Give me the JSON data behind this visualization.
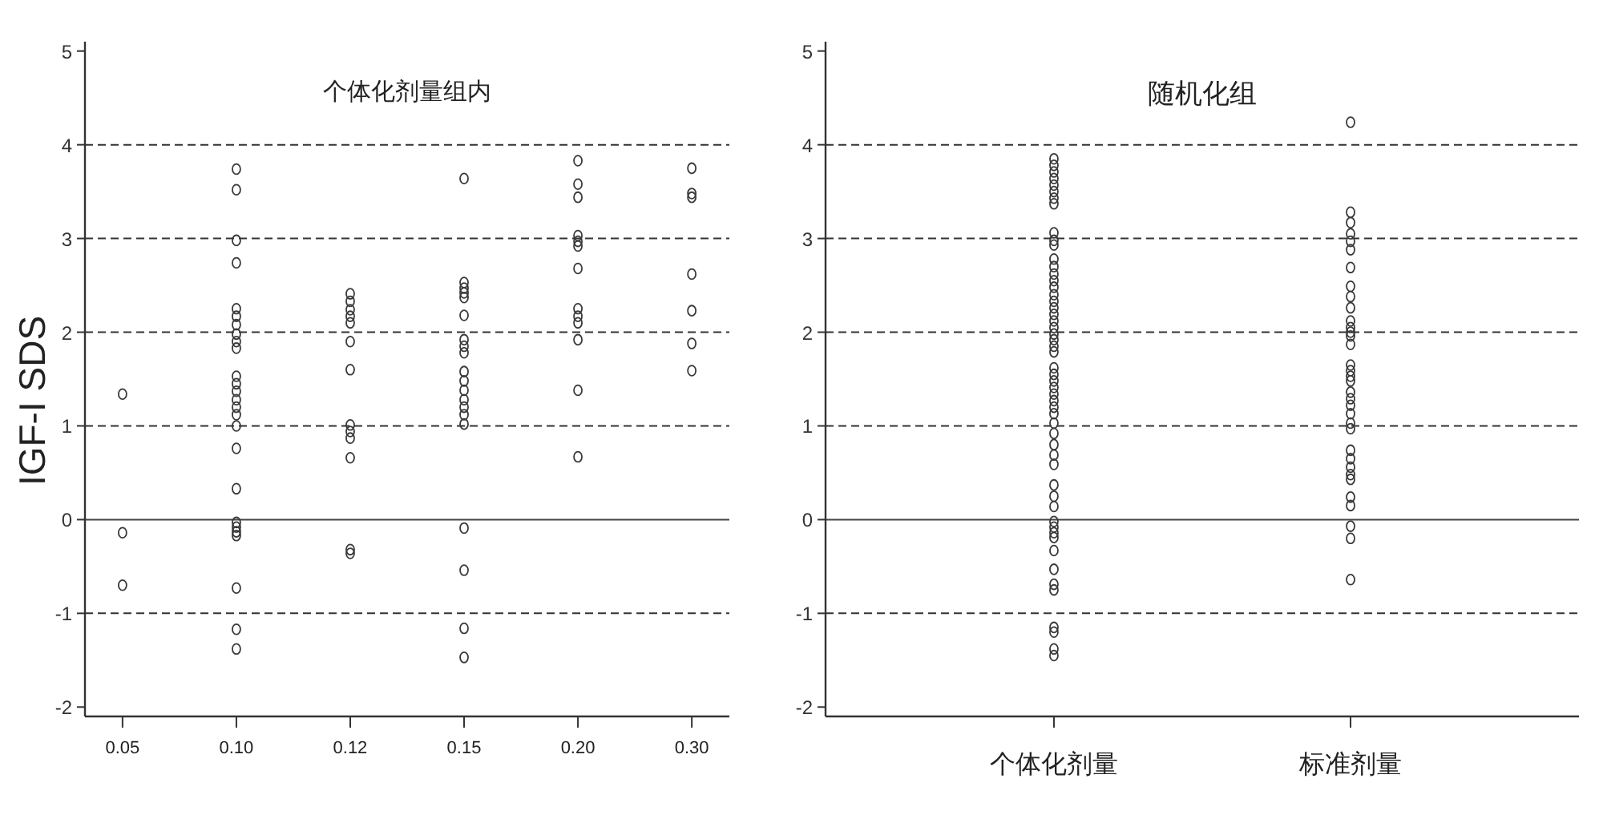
{
  "chart_data": [
    {
      "type": "scatter",
      "title": "个体化剂量组内",
      "ylabel": "IGF-I SDS",
      "categories": [
        "0.05",
        "0.10",
        "0.12",
        "0.15",
        "0.20",
        "0.30"
      ],
      "marker": "circle",
      "ylim": [
        -2.1,
        5.1
      ],
      "yticks": [
        -2,
        -1,
        0,
        1,
        2,
        3,
        4,
        5
      ],
      "ref_lines": [
        {
          "axis": "y",
          "value": 4,
          "line_style": "dashed",
          "color": "#333333"
        },
        {
          "axis": "y",
          "value": 3,
          "line_style": "dashed",
          "color": "#333333"
        },
        {
          "axis": "y",
          "value": 2,
          "line_style": "dashed",
          "color": "#333333"
        },
        {
          "axis": "y",
          "value": 1,
          "line_style": "dashed",
          "color": "#333333"
        },
        {
          "axis": "y",
          "value": 0,
          "line_style": "solid",
          "color": "#444444"
        },
        {
          "axis": "y",
          "value": -1,
          "line_style": "dashed",
          "color": "#333333"
        }
      ],
      "series": [
        {
          "color": "#3a3a3a",
          "x": [
            "0.05",
            "0.05",
            "0.05"
          ],
          "values": [
            1.34,
            -0.14,
            -0.7
          ]
        },
        {
          "color": "#3a3a3a",
          "x": [
            "0.10",
            "0.10",
            "0.10",
            "0.10",
            "0.10",
            "0.10",
            "0.10",
            "0.10",
            "0.10",
            "0.10",
            "0.10",
            "0.10",
            "0.10",
            "0.10",
            "0.10",
            "0.10",
            "0.10",
            "0.10",
            "0.10",
            "0.10",
            "0.10",
            "0.10",
            "0.10",
            "0.10",
            "0.10",
            "0.10"
          ],
          "values": [
            3.74,
            3.52,
            2.98,
            2.74,
            2.25,
            2.17,
            2.08,
            1.98,
            1.9,
            1.83,
            1.53,
            1.45,
            1.37,
            1.28,
            1.2,
            1.12,
            1.0,
            0.76,
            0.33,
            -0.03,
            -0.08,
            -0.13,
            -0.17,
            -0.73,
            -1.17,
            -1.38
          ]
        },
        {
          "color": "#3a3a3a",
          "x": [
            "0.12",
            "0.12",
            "0.12",
            "0.12",
            "0.12",
            "0.12",
            "0.12",
            "0.12",
            "0.12",
            "0.12",
            "0.12",
            "0.12",
            "0.12"
          ],
          "values": [
            2.41,
            2.33,
            2.24,
            2.17,
            2.1,
            1.9,
            1.6,
            1.01,
            0.94,
            0.87,
            0.66,
            -0.32,
            -0.36
          ]
        },
        {
          "color": "#3a3a3a",
          "x": [
            "0.15",
            "0.15",
            "0.15",
            "0.15",
            "0.15",
            "0.15",
            "0.15",
            "0.15",
            "0.15",
            "0.15",
            "0.15",
            "0.15",
            "0.15",
            "0.15",
            "0.15",
            "0.15",
            "0.15",
            "0.15",
            "0.15",
            "0.15"
          ],
          "values": [
            3.64,
            2.53,
            2.47,
            2.42,
            2.37,
            2.18,
            1.92,
            1.85,
            1.78,
            1.58,
            1.48,
            1.38,
            1.28,
            1.2,
            1.12,
            1.02,
            -0.09,
            -0.54,
            -1.16,
            -1.47
          ]
        },
        {
          "color": "#3a3a3a",
          "x": [
            "0.20",
            "0.20",
            "0.20",
            "0.20",
            "0.20",
            "0.20",
            "0.20",
            "0.20",
            "0.20",
            "0.20",
            "0.20",
            "0.20",
            "0.20"
          ],
          "values": [
            3.83,
            3.58,
            3.44,
            3.03,
            2.97,
            2.92,
            2.68,
            2.25,
            2.17,
            2.1,
            1.92,
            1.38,
            0.67
          ]
        },
        {
          "color": "#3a3a3a",
          "x": [
            "0.30",
            "0.30",
            "0.30",
            "0.30",
            "0.30",
            "0.30",
            "0.30"
          ],
          "values": [
            3.75,
            3.48,
            3.44,
            2.62,
            2.23,
            1.88,
            1.59
          ]
        }
      ]
    },
    {
      "type": "scatter",
      "title": "随机化组",
      "categories": [
        "个体化剂量",
        "标准剂量"
      ],
      "marker": "circle",
      "ylim": [
        -2.1,
        5.1
      ],
      "yticks": [
        -2,
        -1,
        0,
        1,
        2,
        3,
        4,
        5
      ],
      "ref_lines": [
        {
          "axis": "y",
          "value": 4,
          "line_style": "dashed",
          "color": "#333333"
        },
        {
          "axis": "y",
          "value": 3,
          "line_style": "dashed",
          "color": "#333333"
        },
        {
          "axis": "y",
          "value": 2,
          "line_style": "dashed",
          "color": "#333333"
        },
        {
          "axis": "y",
          "value": 1,
          "line_style": "dashed",
          "color": "#333333"
        },
        {
          "axis": "y",
          "value": 0,
          "line_style": "solid",
          "color": "#444444"
        },
        {
          "axis": "y",
          "value": -1,
          "line_style": "dashed",
          "color": "#333333"
        }
      ],
      "series": [
        {
          "color": "#3a3a3a",
          "x": [
            "个体化剂量",
            "个体化剂量",
            "个体化剂量",
            "个体化剂量",
            "个体化剂量",
            "个体化剂量",
            "个体化剂量",
            "个体化剂量",
            "个体化剂量",
            "个体化剂量",
            "个体化剂量",
            "个体化剂量",
            "个体化剂量",
            "个体化剂量",
            "个体化剂量",
            "个体化剂量",
            "个体化剂量",
            "个体化剂量",
            "个体化剂量",
            "个体化剂量",
            "个体化剂量",
            "个体化剂量",
            "个体化剂量",
            "个体化剂量",
            "个体化剂量",
            "个体化剂量",
            "个体化剂量",
            "个体化剂量",
            "个体化剂量",
            "个体化剂量",
            "个体化剂量",
            "个体化剂量",
            "个体化剂量",
            "个体化剂量",
            "个体化剂量",
            "个体化剂量",
            "个体化剂量",
            "个体化剂量",
            "个体化剂量",
            "个体化剂量",
            "个体化剂量",
            "个体化剂量",
            "个体化剂量",
            "个体化剂量",
            "个体化剂量",
            "个体化剂量",
            "个体化剂量",
            "个体化剂量",
            "个体化剂量",
            "个体化剂量",
            "个体化剂量",
            "个体化剂量",
            "个体化剂量",
            "个体化剂量"
          ],
          "values": [
            3.85,
            3.78,
            3.71,
            3.64,
            3.57,
            3.5,
            3.43,
            3.37,
            3.06,
            2.98,
            2.93,
            2.78,
            2.7,
            2.62,
            2.55,
            2.48,
            2.4,
            2.33,
            2.26,
            2.19,
            2.12,
            2.05,
            1.98,
            1.92,
            1.85,
            1.79,
            1.62,
            1.55,
            1.48,
            1.41,
            1.34,
            1.27,
            1.2,
            1.13,
            1.03,
            0.92,
            0.8,
            0.69,
            0.59,
            0.37,
            0.25,
            0.14,
            -0.02,
            -0.08,
            -0.14,
            -0.19,
            -0.33,
            -0.53,
            -0.69,
            -0.75,
            -1.15,
            -1.2,
            -1.38,
            -1.45
          ]
        },
        {
          "color": "#3a3a3a",
          "x": [
            "标准剂量",
            "标准剂量",
            "标准剂量",
            "标准剂量",
            "标准剂量",
            "标准剂量",
            "标准剂量",
            "标准剂量",
            "标准剂量",
            "标准剂量",
            "标准剂量",
            "标准剂量",
            "标准剂量",
            "标准剂量",
            "标准剂量",
            "标准剂量",
            "标准剂量",
            "标准剂量",
            "标准剂量",
            "标准剂量",
            "标准剂量",
            "标准剂量",
            "标准剂量",
            "标准剂量",
            "标准剂量",
            "标准剂量",
            "标准剂量",
            "标准剂量",
            "标准剂量",
            "标准剂量",
            "标准剂量",
            "标准剂量",
            "标准剂量",
            "标准剂量",
            "标准剂量"
          ],
          "values": [
            4.24,
            3.28,
            3.17,
            3.05,
            2.97,
            2.88,
            2.69,
            2.49,
            2.38,
            2.26,
            2.12,
            2.05,
            2.0,
            1.96,
            1.87,
            1.65,
            1.59,
            1.53,
            1.48,
            1.36,
            1.29,
            1.22,
            1.13,
            1.03,
            0.97,
            0.74,
            0.65,
            0.56,
            0.48,
            0.43,
            0.24,
            0.15,
            -0.07,
            -0.2,
            -0.64
          ]
        }
      ]
    }
  ]
}
